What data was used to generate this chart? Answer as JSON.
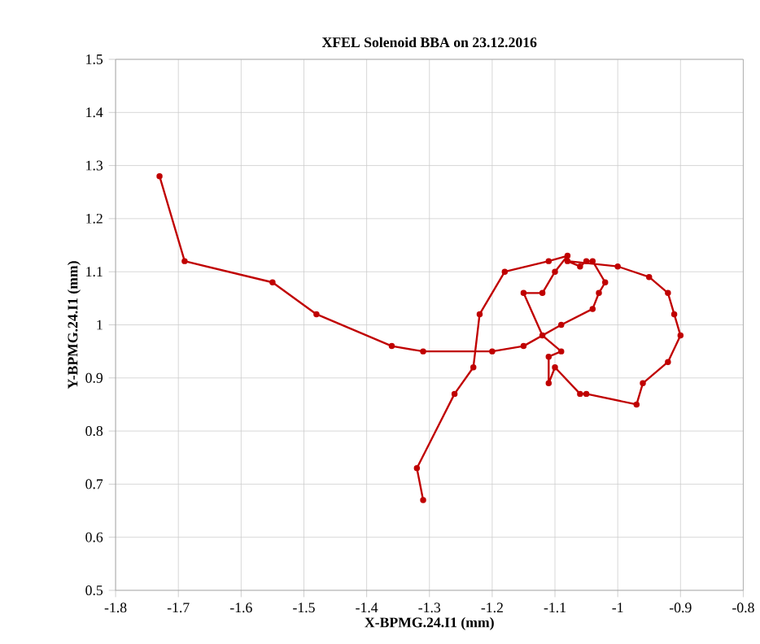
{
  "chart_data": {
    "type": "line",
    "title": "XFEL Solenoid BBA on 23.12.2016",
    "xlabel": "X-BPMG.24.I1 (mm)",
    "ylabel": "Y-BPMG.24.I1 (mm)",
    "xlim": [
      -1.8,
      -0.8
    ],
    "ylim": [
      0.5,
      1.5
    ],
    "xticks": [
      -1.8,
      -1.7,
      -1.6,
      -1.5,
      -1.4,
      -1.3,
      -1.2,
      -1.1,
      -1,
      -0.9,
      -0.8
    ],
    "yticks": [
      0.5,
      0.6,
      0.7,
      0.8,
      0.9,
      1,
      1.1,
      1.2,
      1.3,
      1.4,
      1.5
    ],
    "grid": true,
    "marker": "circle",
    "line_style": "solid",
    "series": [
      {
        "color": "#c00000",
        "x": [
          -1.73,
          -1.69,
          -1.55,
          -1.48,
          -1.36,
          -1.31,
          -1.2,
          -1.15,
          -1.09,
          -1.04,
          -1.03,
          -1.02,
          -1.04,
          -1.05,
          -1.06,
          -1.08,
          -1.0,
          -0.95,
          -0.92,
          -0.91,
          -0.9,
          -0.92,
          -0.96,
          -0.97,
          -1.05,
          -1.06,
          -1.1,
          -1.11,
          -1.11,
          -1.09,
          -1.12,
          -1.15,
          -1.12,
          -1.1,
          -1.08,
          -1.11,
          -1.18,
          -1.22,
          -1.23,
          -1.26,
          -1.32,
          -1.31
        ],
        "values": [
          1.28,
          1.12,
          1.08,
          1.02,
          0.96,
          0.95,
          0.95,
          0.96,
          1.0,
          1.03,
          1.06,
          1.08,
          1.12,
          1.12,
          1.11,
          1.12,
          1.11,
          1.09,
          1.06,
          1.02,
          0.98,
          0.93,
          0.89,
          0.85,
          0.87,
          0.87,
          0.92,
          0.89,
          0.94,
          0.95,
          0.98,
          1.06,
          1.06,
          1.1,
          1.13,
          1.12,
          1.1,
          1.02,
          0.92,
          0.87,
          0.73,
          0.67
        ]
      }
    ]
  }
}
